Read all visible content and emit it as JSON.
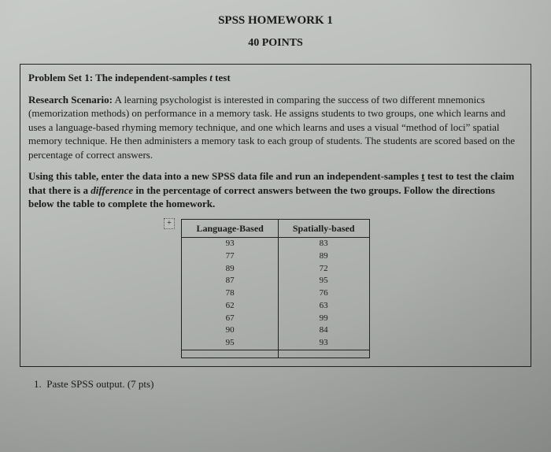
{
  "title": "SPSS HOMEWORK 1",
  "subtitle": "40 POINTS",
  "problem_heading_pre": "Problem Set 1: The independent-samples ",
  "problem_heading_ital": "t",
  "problem_heading_post": " test",
  "scenario_label": "Research Scenario:",
  "scenario_text": " A learning psychologist is interested in comparing the success of two different mnemonics (memorization methods) on performance in a memory task. He assigns students to two groups, one which learns and uses a language-based rhyming memory technique, and one which learns and uses a visual “method of loci” spatial memory technique. He then administers a memory task to each group of students. The students are scored based on the percentage of correct answers.",
  "instruct_pre": "Using this table, enter the data into a new SPSS data file and run an independent-samples ",
  "instruct_t": "t",
  "instruct_mid": " test to test the claim that there is a ",
  "instruct_diff": "difference",
  "instruct_post": " in the percentage of correct answers between the two groups. Follow the directions below the table to complete the homework.",
  "plus": "+",
  "table": {
    "headers": [
      "Language-Based",
      "Spatially-based"
    ],
    "rows": [
      [
        "93",
        "83"
      ],
      [
        "77",
        "89"
      ],
      [
        "89",
        "72"
      ],
      [
        "87",
        "95"
      ],
      [
        "78",
        "76"
      ],
      [
        "62",
        "63"
      ],
      [
        "67",
        "99"
      ],
      [
        "90",
        "84"
      ],
      [
        "95",
        "93"
      ]
    ]
  },
  "question_num": "1.",
  "question_text": "Paste SPSS output.  (7 pts)"
}
